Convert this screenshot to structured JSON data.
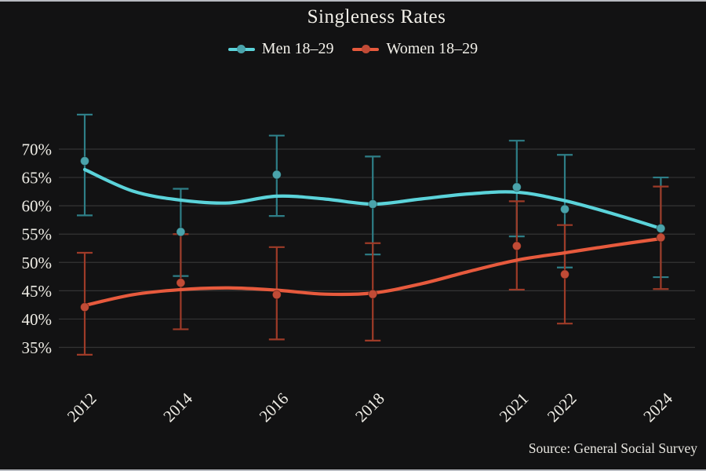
{
  "window": {
    "background": "#121213",
    "border_color": "#b7bac0"
  },
  "header": {
    "title": "Singleness Rates"
  },
  "footer": {
    "source_note": "Source: General Social Survey"
  },
  "chart_data": {
    "type": "line",
    "title": "Singleness Rates",
    "xlabel": "",
    "ylabel": "",
    "grid": true,
    "legend_position": "top-center",
    "background_color": "#121213",
    "grid_color": "#343434",
    "text_color": "#efede6",
    "x_tick_years": [
      2012,
      2014,
      2016,
      2018,
      2021,
      2022,
      2024
    ],
    "x_tick_labels": [
      "2012",
      "2014",
      "2016",
      "2018",
      "2021",
      "2022",
      "2024"
    ],
    "y_tick_values": [
      70,
      65,
      60,
      55,
      50,
      45,
      40,
      35
    ],
    "y_tick_labels": [
      "70%",
      "65%",
      "60%",
      "55%",
      "50%",
      "45%",
      "40%",
      "35%"
    ],
    "xlim": [
      2011.4,
      2024.7
    ],
    "ylim": [
      31,
      77
    ],
    "series": [
      {
        "name": "Men 18–29",
        "line_color": "#5bd3da",
        "point_color": "#4aa3ab",
        "errorbar_color": "#2e7e87",
        "points": [
          {
            "year": 2012,
            "value": 67.9,
            "ci_low": 58.3,
            "ci_high": 76.1
          },
          {
            "year": 2014,
            "value": 55.4,
            "ci_low": 47.6,
            "ci_high": 63.0
          },
          {
            "year": 2016,
            "value": 65.5,
            "ci_low": 58.2,
            "ci_high": 72.4
          },
          {
            "year": 2018,
            "value": 60.3,
            "ci_low": 51.4,
            "ci_high": 68.7
          },
          {
            "year": 2021,
            "value": 63.3,
            "ci_low": 54.6,
            "ci_high": 71.5
          },
          {
            "year": 2022,
            "value": 59.4,
            "ci_low": 49.1,
            "ci_high": 69.0
          },
          {
            "year": 2024,
            "value": 56.0,
            "ci_low": 47.4,
            "ci_high": 65.0
          }
        ],
        "trend": [
          [
            2012,
            66.4
          ],
          [
            2013,
            62.6
          ],
          [
            2014,
            61.0
          ],
          [
            2015,
            60.5
          ],
          [
            2016,
            61.7
          ],
          [
            2017,
            61.2
          ],
          [
            2018,
            60.3
          ],
          [
            2019,
            61.2
          ],
          [
            2020,
            62.1
          ],
          [
            2021,
            62.4
          ],
          [
            2022,
            60.9
          ],
          [
            2023,
            58.6
          ],
          [
            2024,
            56.0
          ]
        ]
      },
      {
        "name": "Women 18–29",
        "line_color": "#e75a3d",
        "point_color": "#c14b36",
        "errorbar_color": "#9e3b28",
        "points": [
          {
            "year": 2012,
            "value": 42.1,
            "ci_low": 33.7,
            "ci_high": 51.7
          },
          {
            "year": 2014,
            "value": 46.4,
            "ci_low": 38.2,
            "ci_high": 55.0
          },
          {
            "year": 2016,
            "value": 44.3,
            "ci_low": 36.4,
            "ci_high": 52.7
          },
          {
            "year": 2018,
            "value": 44.4,
            "ci_low": 36.2,
            "ci_high": 53.4
          },
          {
            "year": 2021,
            "value": 52.9,
            "ci_low": 45.2,
            "ci_high": 60.8
          },
          {
            "year": 2022,
            "value": 47.9,
            "ci_low": 39.2,
            "ci_high": 56.6
          },
          {
            "year": 2024,
            "value": 54.4,
            "ci_low": 45.3,
            "ci_high": 63.4
          }
        ],
        "trend": [
          [
            2012,
            42.4
          ],
          [
            2013,
            44.3
          ],
          [
            2014,
            45.2
          ],
          [
            2015,
            45.5
          ],
          [
            2016,
            45.1
          ],
          [
            2017,
            44.4
          ],
          [
            2018,
            44.6
          ],
          [
            2019,
            46.2
          ],
          [
            2020,
            48.4
          ],
          [
            2021,
            50.4
          ],
          [
            2022,
            51.7
          ],
          [
            2023,
            53.0
          ],
          [
            2024,
            54.2
          ]
        ]
      }
    ],
    "source": "Source: General Social Survey"
  }
}
